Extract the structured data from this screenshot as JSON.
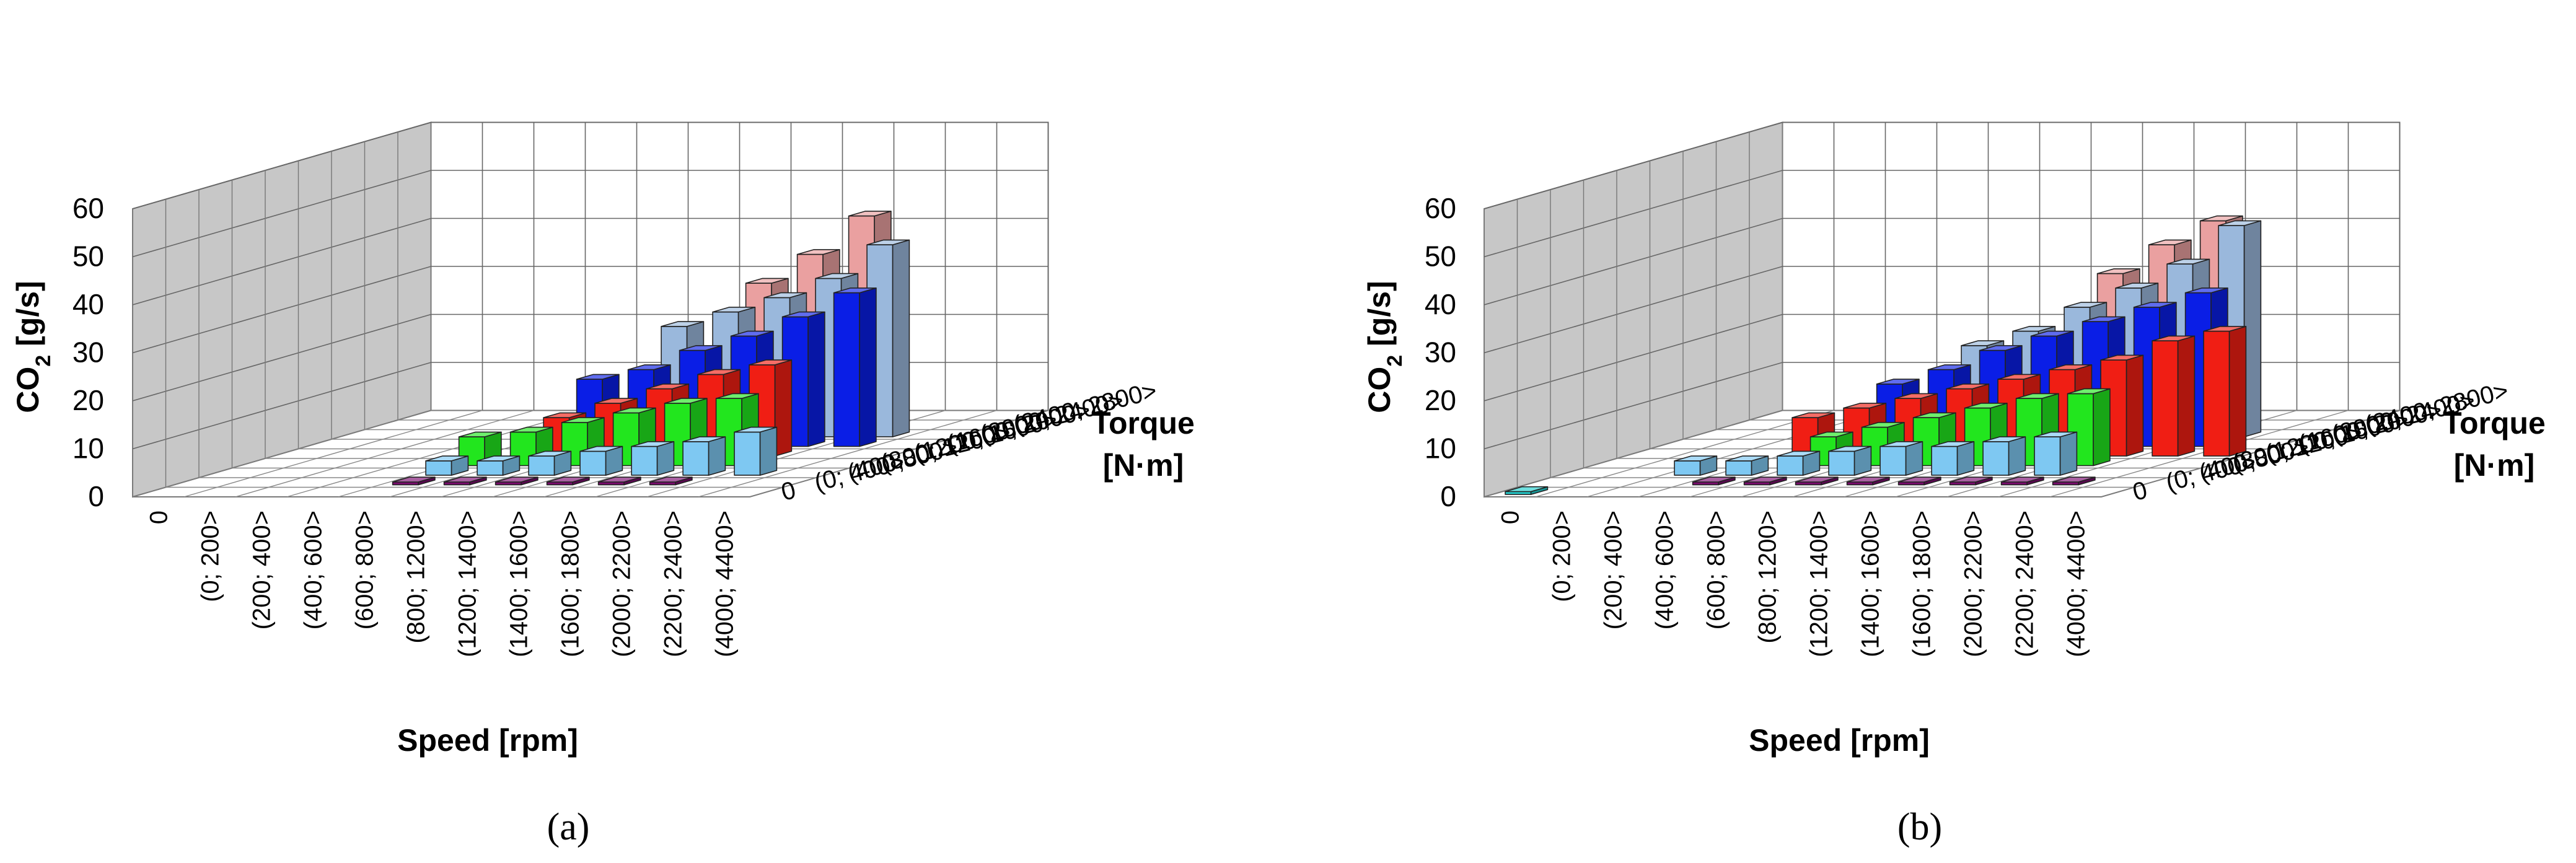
{
  "chart_data": [
    {
      "type": "bar",
      "panel_label": "(a)",
      "zlabel": "CO2 [g/s]",
      "zlabel_main": "CO",
      "zlabel_sub": "2",
      "zlabel_rest": " [g/s]",
      "xlabel": "Speed [rpm]",
      "ylabel": "Torque [N·m]",
      "ylabel_line1": "Torque",
      "ylabel_line2": "[N·m]",
      "zlim": [
        0,
        60
      ],
      "zticks": [
        "0",
        "10",
        "20",
        "30",
        "40",
        "50",
        "60"
      ],
      "x_categories": [
        "0",
        "(0; 200>",
        "(200; 400>",
        "(400; 600>",
        "(600; 800>",
        "(800; 1200>",
        "(1200; 1400>",
        "(1400; 1600>",
        "(1600; 1800>",
        "(2000; 2200>",
        "(2200; 2400>",
        "(4000; 4400>"
      ],
      "y_categories": [
        "0",
        "(0; 400>",
        "(400;800>",
        "(800; 1200>",
        "(1200; 1600>",
        "(1600; 2000>",
        "(2000; 2400>",
        "(2400; 2800>"
      ],
      "series": [
        {
          "name": "(0; 400>",
          "color": "#7a0a6e",
          "values": [
            0,
            0,
            0,
            0,
            0.6,
            0.6,
            0.6,
            0.6,
            0.6,
            0.6,
            0,
            0
          ]
        },
        {
          "name": "(400;800>",
          "color": "#7ec8f2",
          "values": [
            0,
            0,
            0,
            0,
            3,
            3,
            4,
            5,
            6,
            7,
            9,
            0
          ]
        },
        {
          "name": "(800; 1200>",
          "color": "#22e61e",
          "values": [
            0,
            0,
            0,
            0,
            6,
            7,
            9,
            11,
            13,
            14,
            0,
            0
          ]
        },
        {
          "name": "(1200; 1600>",
          "color": "#f01e14",
          "values": [
            0,
            0,
            0,
            0,
            0,
            8,
            11,
            14,
            17,
            19,
            0,
            0
          ]
        },
        {
          "name": "(1600; 2000>",
          "color": "#0a1ee6",
          "values": [
            0,
            0,
            0,
            0,
            0,
            14,
            16,
            20,
            23,
            27,
            32,
            0
          ]
        },
        {
          "name": "(2000; 2400>",
          "color": "#9ab8dc",
          "values": [
            0,
            0,
            0,
            0,
            0,
            0,
            23,
            26,
            29,
            33,
            40,
            0
          ]
        },
        {
          "name": "(2400; 2800>",
          "color": "#eaa0a0",
          "values": [
            0,
            0,
            0,
            0,
            0,
            0,
            0,
            30,
            36,
            44,
            0,
            0
          ]
        }
      ]
    },
    {
      "type": "bar",
      "panel_label": "(b)",
      "zlabel": "CO2 [g/s]",
      "zlabel_main": "CO",
      "zlabel_sub": "2",
      "zlabel_rest": " [g/s]",
      "xlabel": "Speed [rpm]",
      "ylabel": "Torque [N·m]",
      "ylabel_line1": "Torque",
      "ylabel_line2": "[N·m]",
      "zlim": [
        0,
        60
      ],
      "zticks": [
        "0",
        "10",
        "20",
        "30",
        "40",
        "50",
        "60"
      ],
      "x_categories": [
        "0",
        "(0; 200>",
        "(200; 400>",
        "(400; 600>",
        "(600; 800>",
        "(800; 1200>",
        "(1200; 1400>",
        "(1400; 1600>",
        "(1600; 1800>",
        "(2000; 2200>",
        "(2200; 2400>",
        "(4000; 4400>"
      ],
      "y_categories": [
        "0",
        "(0; 400>",
        "(400;800>",
        "(800; 1200>",
        "(1200; 1600>",
        "(1600; 2000>",
        "(2000; 2400>",
        "(2400; 2800>"
      ],
      "series": [
        {
          "name": "0",
          "color": "#22d0d0",
          "values": [
            0.6,
            0,
            0,
            0,
            0,
            0,
            0,
            0,
            0,
            0,
            0,
            0
          ]
        },
        {
          "name": "(0; 400>",
          "color": "#7a0a6e",
          "values": [
            0,
            0,
            0,
            0.6,
            0.6,
            0.6,
            0.6,
            0.6,
            0.6,
            0.6,
            0.6,
            0
          ]
        },
        {
          "name": "(400;800>",
          "color": "#7ec8f2",
          "values": [
            0,
            0,
            3,
            3,
            4,
            5,
            6,
            6,
            7,
            8,
            0,
            0
          ]
        },
        {
          "name": "(800; 1200>",
          "color": "#22e61e",
          "values": [
            0,
            0,
            0,
            0,
            6,
            8,
            10,
            12,
            14,
            15,
            0,
            0
          ]
        },
        {
          "name": "(1200; 1600>",
          "color": "#f01e14",
          "values": [
            0,
            0,
            0,
            8,
            10,
            12,
            14,
            16,
            18,
            20,
            24,
            26
          ]
        },
        {
          "name": "(1600; 2000>",
          "color": "#0a1ee6",
          "values": [
            0,
            0,
            0,
            0,
            13,
            16,
            20,
            23,
            26,
            29,
            32,
            0
          ]
        },
        {
          "name": "(2000; 2400>",
          "color": "#9ab8dc",
          "values": [
            0,
            0,
            0,
            0,
            0,
            19,
            22,
            27,
            31,
            36,
            44,
            0
          ]
        },
        {
          "name": "(2400; 2800>",
          "color": "#eaa0a0",
          "values": [
            0,
            0,
            0,
            0,
            0,
            0,
            0,
            32,
            38,
            43,
            0,
            0
          ]
        }
      ]
    }
  ]
}
